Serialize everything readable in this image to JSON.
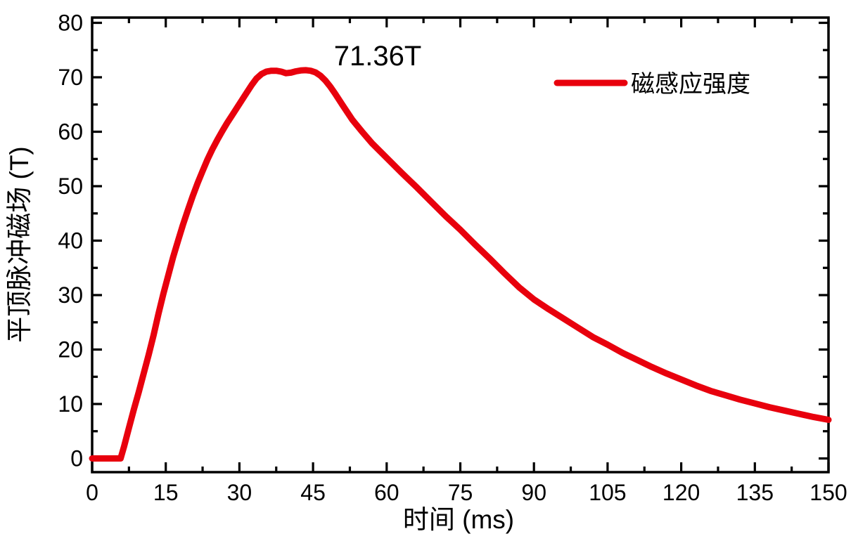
{
  "colors": {
    "series_red": "#e8000d",
    "axis_black": "#000000",
    "background": "#ffffff"
  },
  "chart_data": {
    "type": "line",
    "title": "",
    "xlabel": "时间 (ms)",
    "ylabel": "平顶脉冲磁场 (T)",
    "xlim": [
      0,
      150
    ],
    "ylim": [
      0,
      80
    ],
    "x_ticks": [
      0,
      15,
      30,
      45,
      60,
      75,
      90,
      105,
      120,
      135,
      150
    ],
    "y_ticks": [
      0,
      10,
      20,
      30,
      40,
      50,
      60,
      70,
      80
    ],
    "x_minor_step": 7.5,
    "y_minor_step": 5,
    "grid": false,
    "legend_position": "upper-right-inside",
    "annotation": {
      "text": "71.36T",
      "x_ms": 58,
      "value_T": 71.36
    },
    "legend": [
      {
        "label": "磁感应强度",
        "color": "#e8000d"
      }
    ],
    "series": [
      {
        "name": "磁感应强度",
        "color": "#e8000d",
        "points": [
          [
            0,
            0
          ],
          [
            2,
            0
          ],
          [
            4,
            0
          ],
          [
            5.8,
            0
          ],
          [
            6.5,
            2.2
          ],
          [
            7.5,
            5.6
          ],
          [
            8.5,
            9.0
          ],
          [
            9.5,
            12.2
          ],
          [
            10.5,
            15.6
          ],
          [
            11.5,
            19.0
          ],
          [
            12.5,
            22.6
          ],
          [
            13.5,
            26.5
          ],
          [
            14.5,
            30.2
          ],
          [
            15.5,
            33.6
          ],
          [
            16.5,
            37.0
          ],
          [
            17.5,
            40.0
          ],
          [
            18.5,
            42.9
          ],
          [
            19.5,
            45.6
          ],
          [
            20.5,
            48.2
          ],
          [
            21.5,
            50.6
          ],
          [
            22.5,
            52.8
          ],
          [
            23.5,
            54.9
          ],
          [
            24.5,
            56.8
          ],
          [
            25.5,
            58.5
          ],
          [
            26.5,
            60.1
          ],
          [
            27.5,
            61.6
          ],
          [
            28.5,
            63.0
          ],
          [
            29.5,
            64.4
          ],
          [
            30.5,
            65.8
          ],
          [
            31.5,
            67.2
          ],
          [
            32.5,
            68.6
          ],
          [
            33.5,
            69.8
          ],
          [
            34.5,
            70.6
          ],
          [
            35.5,
            71.05
          ],
          [
            36.5,
            71.2
          ],
          [
            37.5,
            71.2
          ],
          [
            38.5,
            71.05
          ],
          [
            39.5,
            70.75
          ],
          [
            40.5,
            70.85
          ],
          [
            41.5,
            71.1
          ],
          [
            42.5,
            71.25
          ],
          [
            43.5,
            71.3
          ],
          [
            44.5,
            71.2
          ],
          [
            45.5,
            70.9
          ],
          [
            46.5,
            70.3
          ],
          [
            47.5,
            69.4
          ],
          [
            48.5,
            68.3
          ],
          [
            49.5,
            67.0
          ],
          [
            51,
            64.9
          ],
          [
            53,
            62.2
          ],
          [
            55,
            60.0
          ],
          [
            57,
            57.9
          ],
          [
            60,
            55.2
          ],
          [
            63,
            52.5
          ],
          [
            66,
            49.9
          ],
          [
            69,
            47.2
          ],
          [
            72,
            44.5
          ],
          [
            75,
            42.0
          ],
          [
            78,
            39.3
          ],
          [
            81,
            36.7
          ],
          [
            84,
            34.0
          ],
          [
            87,
            31.4
          ],
          [
            90,
            29.2
          ],
          [
            93,
            27.4
          ],
          [
            96,
            25.7
          ],
          [
            99,
            24.0
          ],
          [
            102,
            22.3
          ],
          [
            105,
            20.9
          ],
          [
            108,
            19.4
          ],
          [
            111,
            18.1
          ],
          [
            114,
            16.8
          ],
          [
            117,
            15.6
          ],
          [
            120,
            14.5
          ],
          [
            123,
            13.4
          ],
          [
            126,
            12.4
          ],
          [
            129,
            11.6
          ],
          [
            132,
            10.8
          ],
          [
            135,
            10.1
          ],
          [
            138,
            9.4
          ],
          [
            141,
            8.8
          ],
          [
            144,
            8.2
          ],
          [
            147,
            7.6
          ],
          [
            150,
            7.1
          ]
        ]
      }
    ]
  }
}
